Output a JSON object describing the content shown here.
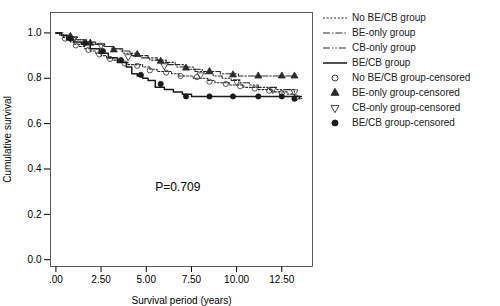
{
  "chart_data": {
    "type": "line",
    "xlabel": "Survival period (years)",
    "ylabel": "Cumulative survival",
    "xlim": [
      -0.3,
      14.2
    ],
    "ylim": [
      -0.03,
      1.09
    ],
    "xticks": [
      {
        "value": 0.0,
        "label": ".00"
      },
      {
        "value": 2.5,
        "label": "2.50"
      },
      {
        "value": 5.0,
        "label": "5.00"
      },
      {
        "value": 7.5,
        "label": "7.50"
      },
      {
        "value": 10.0,
        "label": "10.00"
      },
      {
        "value": 12.5,
        "label": "12.50"
      }
    ],
    "yticks": [
      {
        "value": 0.0,
        "label": "0.0"
      },
      0.2,
      0.4,
      0.6,
      0.8,
      {
        "value": 1.0,
        "label": "1.0"
      }
    ],
    "grid": false,
    "legend": "right",
    "annotations": [
      {
        "text": "P=0.709",
        "x": 5.5,
        "y": 0.305
      }
    ],
    "series": [
      {
        "name": "No BE/CB group",
        "type": "line",
        "line_style": "densely_dotted",
        "color": "#2b2b2b",
        "x": [
          0,
          0.2,
          0.4,
          0.6,
          0.8,
          1.0,
          1.3,
          1.6,
          1.9,
          2.2,
          2.5,
          2.8,
          3.2,
          3.6,
          4.0,
          4.4,
          4.8,
          5.2,
          5.6,
          6.0,
          6.4,
          6.8,
          7.2,
          7.6,
          8.0,
          8.4,
          8.8,
          9.2,
          9.6,
          10.0,
          10.4,
          10.8,
          11.2,
          11.6,
          12.0,
          12.4,
          12.8,
          13.2,
          13.6
        ],
        "values": [
          1.0,
          0.99,
          0.98,
          0.97,
          0.96,
          0.95,
          0.94,
          0.93,
          0.92,
          0.91,
          0.9,
          0.89,
          0.88,
          0.87,
          0.86,
          0.86,
          0.85,
          0.84,
          0.83,
          0.83,
          0.82,
          0.81,
          0.81,
          0.8,
          0.8,
          0.79,
          0.78,
          0.78,
          0.77,
          0.77,
          0.76,
          0.76,
          0.75,
          0.75,
          0.74,
          0.74,
          0.73,
          0.72,
          0.71
        ]
      },
      {
        "name": "BE-only group",
        "type": "line",
        "line_style": "dash_dot",
        "color": "#2b2b2b",
        "x": [
          0,
          0.3,
          0.7,
          1.1,
          1.6,
          2.1,
          2.6,
          3.1,
          3.6,
          4.1,
          4.6,
          5.1,
          5.6,
          6.1,
          6.6,
          7.1,
          7.6,
          8.1,
          8.6,
          9.1,
          9.6,
          10.1,
          10.6,
          11.1,
          11.6,
          12.1,
          12.6,
          13.1
        ],
        "values": [
          1.0,
          0.99,
          0.98,
          0.97,
          0.96,
          0.95,
          0.94,
          0.93,
          0.92,
          0.91,
          0.9,
          0.89,
          0.88,
          0.87,
          0.86,
          0.85,
          0.84,
          0.83,
          0.83,
          0.82,
          0.82,
          0.81,
          0.81,
          0.81,
          0.81,
          0.81,
          0.81,
          0.81
        ]
      },
      {
        "name": "CB-only group",
        "type": "line",
        "line_style": "dash_dot2",
        "color": "#2b2b2b",
        "x": [
          0,
          0.4,
          0.8,
          1.2,
          1.7,
          2.2,
          2.7,
          3.2,
          3.7,
          4.2,
          4.7,
          5.2,
          5.7,
          6.2,
          6.7,
          7.2,
          7.7,
          8.2,
          8.7,
          9.2,
          9.7,
          10.2,
          10.7,
          11.2,
          11.7,
          12.2,
          12.7,
          13.2
        ],
        "values": [
          1.0,
          0.99,
          0.98,
          0.97,
          0.96,
          0.95,
          0.94,
          0.93,
          0.91,
          0.9,
          0.89,
          0.88,
          0.87,
          0.86,
          0.85,
          0.84,
          0.83,
          0.82,
          0.81,
          0.8,
          0.79,
          0.78,
          0.77,
          0.76,
          0.76,
          0.75,
          0.75,
          0.74
        ]
      },
      {
        "name": "BE/CB group",
        "type": "line",
        "line_style": "solid",
        "color": "#1a1a1a",
        "x": [
          0,
          0.3,
          0.6,
          1.0,
          1.4,
          1.9,
          2.4,
          2.9,
          3.4,
          3.9,
          4.2,
          4.5,
          4.8,
          5.1,
          5.5,
          6.0,
          6.5,
          7.0,
          7.5,
          8.0,
          8.5,
          9.0,
          9.5,
          10.0,
          10.5,
          11.0,
          11.5,
          12.0,
          12.5,
          13.0,
          13.5
        ],
        "values": [
          1.0,
          0.99,
          0.97,
          0.96,
          0.95,
          0.93,
          0.91,
          0.89,
          0.87,
          0.85,
          0.82,
          0.81,
          0.8,
          0.79,
          0.76,
          0.75,
          0.74,
          0.73,
          0.72,
          0.72,
          0.72,
          0.72,
          0.72,
          0.72,
          0.72,
          0.72,
          0.72,
          0.72,
          0.72,
          0.72,
          0.71
        ]
      },
      {
        "name": "No BE/CB group-censored",
        "type": "scatter",
        "marker": "circle-open",
        "color": "#2b2b2b",
        "x": [
          0.5,
          1.1,
          1.8,
          2.4,
          3.0,
          3.8,
          4.5,
          5.2,
          6.1,
          6.9,
          7.8,
          8.5,
          9.4,
          10.2,
          11.0,
          11.8,
          12.5,
          13.3
        ],
        "values": [
          0.975,
          0.945,
          0.925,
          0.905,
          0.885,
          0.865,
          0.855,
          0.835,
          0.825,
          0.81,
          0.805,
          0.785,
          0.775,
          0.765,
          0.755,
          0.745,
          0.735,
          0.715
        ]
      },
      {
        "name": "BE-only group-censored",
        "type": "scatter",
        "marker": "triangle-up",
        "color": "#2b2b2b",
        "x": [
          0.8,
          1.9,
          3.2,
          4.5,
          5.8,
          7.2,
          8.5,
          9.8,
          11.2,
          12.5,
          13.2
        ],
        "values": [
          0.985,
          0.955,
          0.925,
          0.905,
          0.875,
          0.845,
          0.83,
          0.815,
          0.81,
          0.81,
          0.81
        ]
      },
      {
        "name": "CB-only group-censored",
        "type": "scatter",
        "marker": "triangle-down-open",
        "color": "#2b2b2b",
        "x": [
          1.0,
          2.5,
          4.0,
          6.0,
          8.0,
          10.0,
          12.0,
          13.2
        ],
        "values": [
          0.975,
          0.945,
          0.895,
          0.855,
          0.815,
          0.785,
          0.75,
          0.74
        ]
      },
      {
        "name": "BE/CB group-censored",
        "type": "scatter",
        "marker": "circle",
        "color": "#1a1a1a",
        "x": [
          0.8,
          1.6,
          2.6,
          3.6,
          4.7,
          5.8,
          7.2,
          8.5,
          9.8,
          11.2,
          12.5,
          13.2
        ],
        "values": [
          0.975,
          0.955,
          0.92,
          0.88,
          0.815,
          0.775,
          0.72,
          0.72,
          0.72,
          0.72,
          0.72,
          0.71
        ]
      }
    ]
  }
}
